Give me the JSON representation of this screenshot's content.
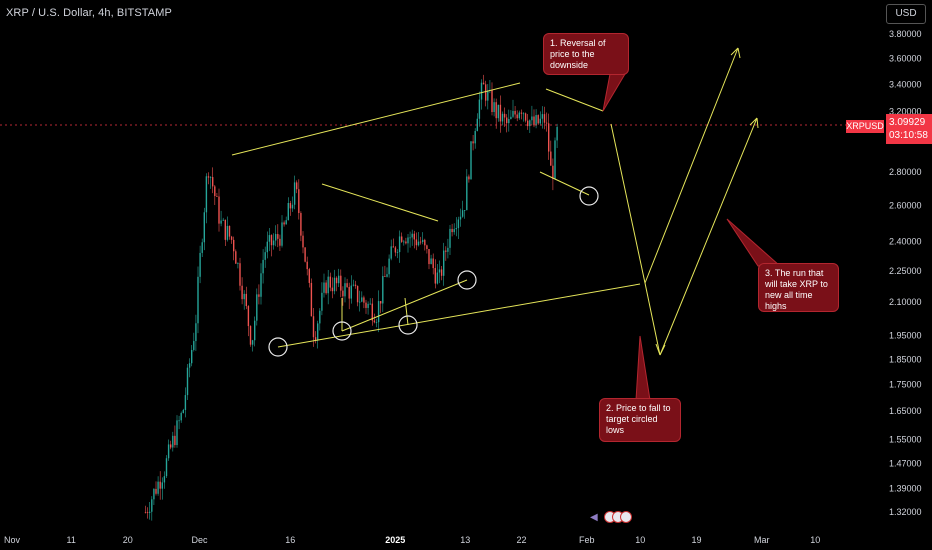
{
  "header": {
    "title": "XRP / U.S. Dollar, 4h, BITSTAMP",
    "currency_button": "USD"
  },
  "price": {
    "symbol_label": "XRPUSD",
    "value": "3.09929",
    "countdown": "03:10:58",
    "color": "#f23645"
  },
  "colors": {
    "up": "#26a69a",
    "down": "#ef5350",
    "drawing": "#e6e65a",
    "annotation_fill": "#7a1018"
  },
  "annotations": [
    {
      "text": "1. Reversal of price to the downside"
    },
    {
      "text": "2. Price to fall to target circled lows"
    },
    {
      "text": "3. The run that will take XRP to new all time highs"
    }
  ],
  "events": {
    "icons": [
      "flag-icon",
      "flag-icon",
      "flag-icon"
    ]
  },
  "chart_data": {
    "type": "candlestick",
    "title": "XRP / U.S. Dollar, 4h, BITSTAMP",
    "y_ticks": [
      "3.80000",
      "3.60000",
      "3.40000",
      "3.20000",
      "2.80000",
      "2.60000",
      "2.40000",
      "2.25000",
      "2.10000",
      "1.95000",
      "1.85000",
      "1.75000",
      "1.65000",
      "1.55000",
      "1.47000",
      "1.39000",
      "1.32000"
    ],
    "y_tick_values": [
      3.8,
      3.6,
      3.4,
      3.2,
      2.8,
      2.6,
      2.4,
      2.25,
      2.1,
      1.95,
      1.85,
      1.75,
      1.65,
      1.55,
      1.47,
      1.39,
      1.32
    ],
    "x_ticks": [
      "Nov",
      "11",
      "20",
      "Dec",
      "16",
      "2025",
      "13",
      "22",
      "Feb",
      "10",
      "19",
      "Mar",
      "10"
    ],
    "x_tick_dates": [
      "2024-11-01",
      "2024-11-11",
      "2024-11-20",
      "2024-12-01",
      "2024-12-16",
      "2025-01-01",
      "2025-01-13",
      "2025-01-22",
      "2025-02-01",
      "2025-02-10",
      "2025-02-19",
      "2025-03-01",
      "2025-03-10"
    ],
    "current_price": 3.09929,
    "scale": "log",
    "grid": false,
    "price_path": [
      {
        "date": "2024-11-23",
        "value": 1.32
      },
      {
        "date": "2024-11-26",
        "value": 1.45
      },
      {
        "date": "2024-11-29",
        "value": 1.65
      },
      {
        "date": "2024-12-01",
        "value": 2.0
      },
      {
        "date": "2024-12-03",
        "value": 2.85
      },
      {
        "date": "2024-12-05",
        "value": 2.5
      },
      {
        "date": "2024-12-07",
        "value": 2.4
      },
      {
        "date": "2024-12-10",
        "value": 1.92
      },
      {
        "date": "2024-12-12",
        "value": 2.35
      },
      {
        "date": "2024-12-15",
        "value": 2.45
      },
      {
        "date": "2024-12-17",
        "value": 2.7
      },
      {
        "date": "2024-12-19",
        "value": 2.2
      },
      {
        "date": "2024-12-20",
        "value": 1.95
      },
      {
        "date": "2024-12-22",
        "value": 2.2
      },
      {
        "date": "2024-12-26",
        "value": 2.15
      },
      {
        "date": "2024-12-30",
        "value": 2.05
      },
      {
        "date": "2025-01-01",
        "value": 2.3
      },
      {
        "date": "2025-01-03",
        "value": 2.45
      },
      {
        "date": "2025-01-06",
        "value": 2.4
      },
      {
        "date": "2025-01-09",
        "value": 2.2
      },
      {
        "date": "2025-01-11",
        "value": 2.5
      },
      {
        "date": "2025-01-13",
        "value": 2.6
      },
      {
        "date": "2025-01-15",
        "value": 3.2
      },
      {
        "date": "2025-01-16",
        "value": 3.38
      },
      {
        "date": "2025-01-18",
        "value": 3.2
      },
      {
        "date": "2025-01-20",
        "value": 3.1
      },
      {
        "date": "2025-01-22",
        "value": 3.25
      },
      {
        "date": "2025-01-24",
        "value": 3.1
      },
      {
        "date": "2025-01-26",
        "value": 3.15
      },
      {
        "date": "2025-01-27",
        "value": 2.75
      },
      {
        "date": "2025-01-28",
        "value": 3.1
      }
    ]
  }
}
